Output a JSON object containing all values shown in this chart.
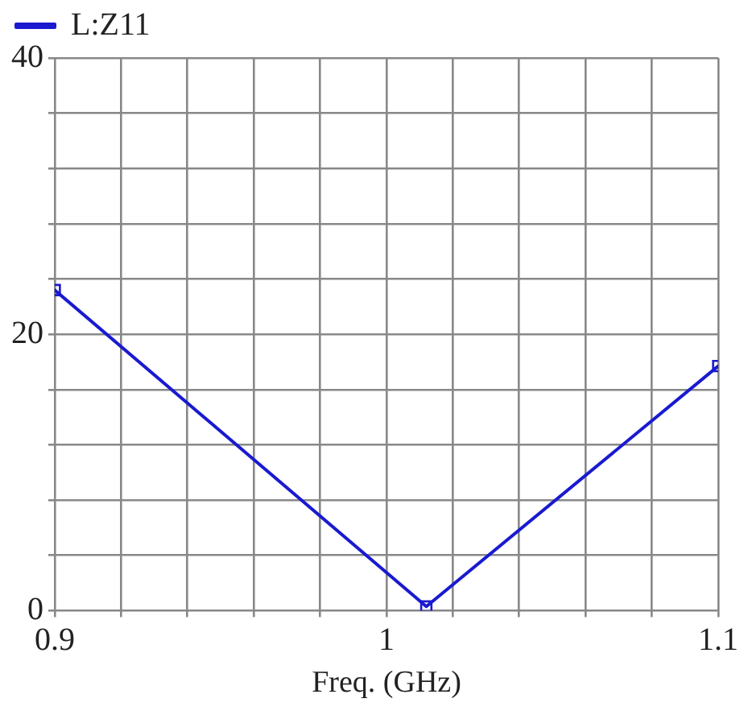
{
  "chart_data": {
    "type": "line",
    "xlabel": "Freq. (GHz)",
    "xlim": [
      0.9,
      1.1
    ],
    "xticks": [
      0.9,
      {
        "value": 0.92,
        "label": null
      },
      {
        "value": 0.94,
        "label": null
      },
      {
        "value": 0.96,
        "label": null
      },
      {
        "value": 0.98,
        "label": null
      },
      1,
      {
        "value": 1.02,
        "label": null
      },
      {
        "value": 1.04,
        "label": null
      },
      {
        "value": 1.06,
        "label": null
      },
      {
        "value": 1.08,
        "label": null
      },
      1.1
    ],
    "ylim": [
      0,
      40
    ],
    "yticks": [
      0,
      {
        "value": 4,
        "label": null
      },
      {
        "value": 8,
        "label": null
      },
      {
        "value": 12,
        "label": null
      },
      {
        "value": 16,
        "label": null
      },
      20,
      {
        "value": 24,
        "label": null
      },
      {
        "value": 28,
        "label": null
      },
      {
        "value": 32,
        "label": null
      },
      {
        "value": 36,
        "label": null
      },
      40
    ],
    "series": [
      {
        "name": "L:Z11",
        "color": "#1a1ad0",
        "x": [
          0.9,
          1.012,
          1.1
        ],
        "values": [
          23.2,
          0.3,
          17.7
        ]
      }
    ],
    "grid": true,
    "legend": "top left",
    "marker": "square",
    "line_style": "solid"
  }
}
